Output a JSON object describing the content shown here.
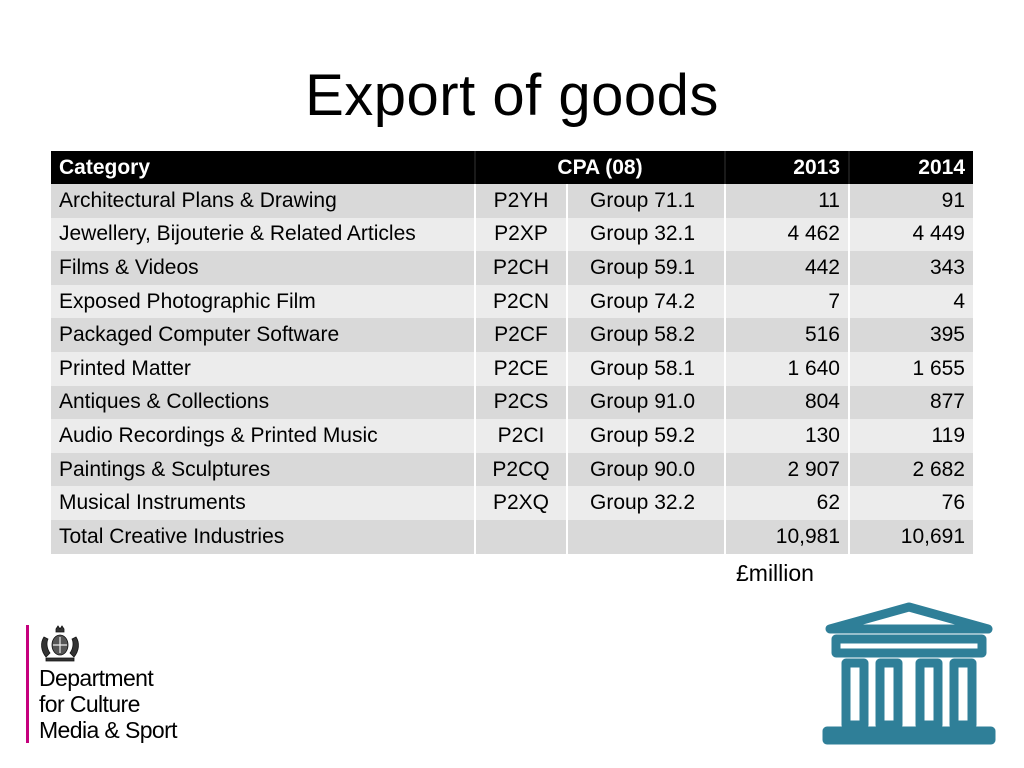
{
  "page": {
    "title": "Export of goods"
  },
  "table": {
    "headers": {
      "category": "Category",
      "cpa": "CPA (08)",
      "y2013": "2013",
      "y2014": "2014"
    },
    "rows": [
      {
        "category": "Architectural Plans & Drawing",
        "code": "P2YH",
        "group": "Group 71.1",
        "y2013": "11",
        "y2014": "91"
      },
      {
        "category": "Jewellery, Bijouterie & Related Articles",
        "code": "P2XP",
        "group": "Group 32.1",
        "y2013": "4 462",
        "y2014": "4 449"
      },
      {
        "category": "Films & Videos",
        "code": "P2CH",
        "group": "Group 59.1",
        "y2013": "442",
        "y2014": "343"
      },
      {
        "category": "Exposed Photographic Film",
        "code": "P2CN",
        "group": "Group 74.2",
        "y2013": "7",
        "y2014": "4"
      },
      {
        "category": "Packaged Computer Software",
        "code": "P2CF",
        "group": "Group 58.2",
        "y2013": "516",
        "y2014": "395"
      },
      {
        "category": "Printed Matter",
        "code": "P2CE",
        "group": "Group 58.1",
        "y2013": "1 640",
        "y2014": "1 655"
      },
      {
        "category": "Antiques & Collections",
        "code": "P2CS",
        "group": "Group 91.0",
        "y2013": "804",
        "y2014": "877"
      },
      {
        "category": "Audio Recordings & Printed Music",
        "code": "P2CI",
        "group": "Group 59.2",
        "y2013": "130",
        "y2014": "119"
      },
      {
        "category": "Paintings & Sculptures",
        "code": "P2CQ",
        "group": "Group 90.0",
        "y2013": "2 907",
        "y2014": "2 682"
      },
      {
        "category": "Musical Instruments",
        "code": "P2XQ",
        "group": "Group 32.2",
        "y2013": "62",
        "y2014": "76"
      },
      {
        "category": "Total Creative Industries",
        "code": "",
        "group": "",
        "y2013": "10,981",
        "y2014": "10,691"
      }
    ],
    "unit_note": "£million"
  },
  "logo": {
    "lines": [
      "Department",
      "for Culture",
      "Media & Sport"
    ],
    "accent_color": "#c5007d"
  },
  "icons": {
    "crest": "royal-crest-icon",
    "museum": "museum-building-icon"
  },
  "colors": {
    "header_bg": "#000000",
    "row_dark": "#d9d9d9",
    "row_light": "#ececec",
    "museum_icon": "#2f7f98"
  }
}
